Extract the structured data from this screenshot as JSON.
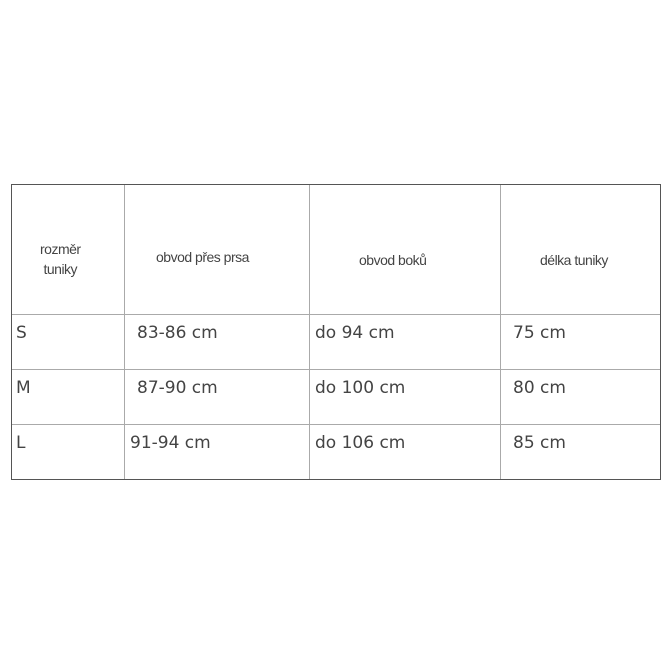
{
  "table": {
    "headers": [
      "rozměr tuniky",
      "obvod přes prsa",
      "obvod boků",
      "délka tuniky"
    ],
    "header_first_lines": [
      "rozměr",
      "tuniky"
    ],
    "rows": [
      [
        "S",
        "83-86 cm",
        "do 94 cm",
        "75 cm"
      ],
      [
        "M",
        "87-90 cm",
        "do 100 cm",
        "80 cm"
      ],
      [
        "L",
        "91-94 cm",
        "do 106 cm",
        "85 cm"
      ]
    ]
  }
}
